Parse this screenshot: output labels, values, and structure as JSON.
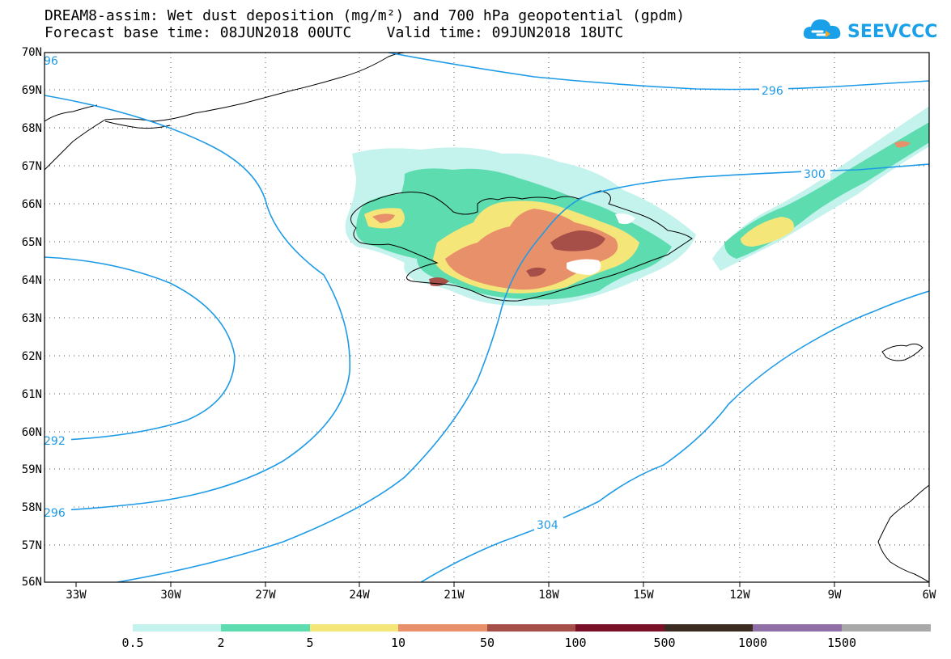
{
  "header": {
    "title_line1": "DREAM8-assim: Wet dust deposition (mg/m²) and 700 hPa geopotential (gpdm)",
    "title_line2": "Forecast base time: 08JUN2018 00UTC    Valid time: 09JUN2018 18UTC"
  },
  "logo": {
    "text": "SEEVCCC",
    "icon": "cloud-icon",
    "color": "#1aa0e8"
  },
  "map": {
    "lat_labels": [
      "70N",
      "69N",
      "68N",
      "67N",
      "66N",
      "65N",
      "64N",
      "63N",
      "62N",
      "61N",
      "60N",
      "59N",
      "58N",
      "57N",
      "56N"
    ],
    "lon_labels": [
      "33W",
      "30W",
      "27W",
      "24W",
      "21W",
      "18W",
      "15W",
      "12W",
      "9W",
      "6W"
    ],
    "contour_labels": [
      "96",
      "296",
      "300",
      "292",
      "296",
      "304"
    ],
    "contour_color": "#1e9be6",
    "coastline_color": "#000000"
  },
  "legend": {
    "bins": [
      {
        "color": "#c4f2ec"
      },
      {
        "color": "#5ddcb0"
      },
      {
        "color": "#f5e67a"
      },
      {
        "color": "#e8906a"
      },
      {
        "color": "#a64e48"
      },
      {
        "color": "#7a1028"
      },
      {
        "color": "#3a2a20"
      },
      {
        "color": "#8f6fa5"
      },
      {
        "color": "#a8a8a8"
      }
    ],
    "labels": [
      "0.5",
      "2",
      "5",
      "10",
      "50",
      "100",
      "500",
      "1000",
      "1500"
    ]
  }
}
